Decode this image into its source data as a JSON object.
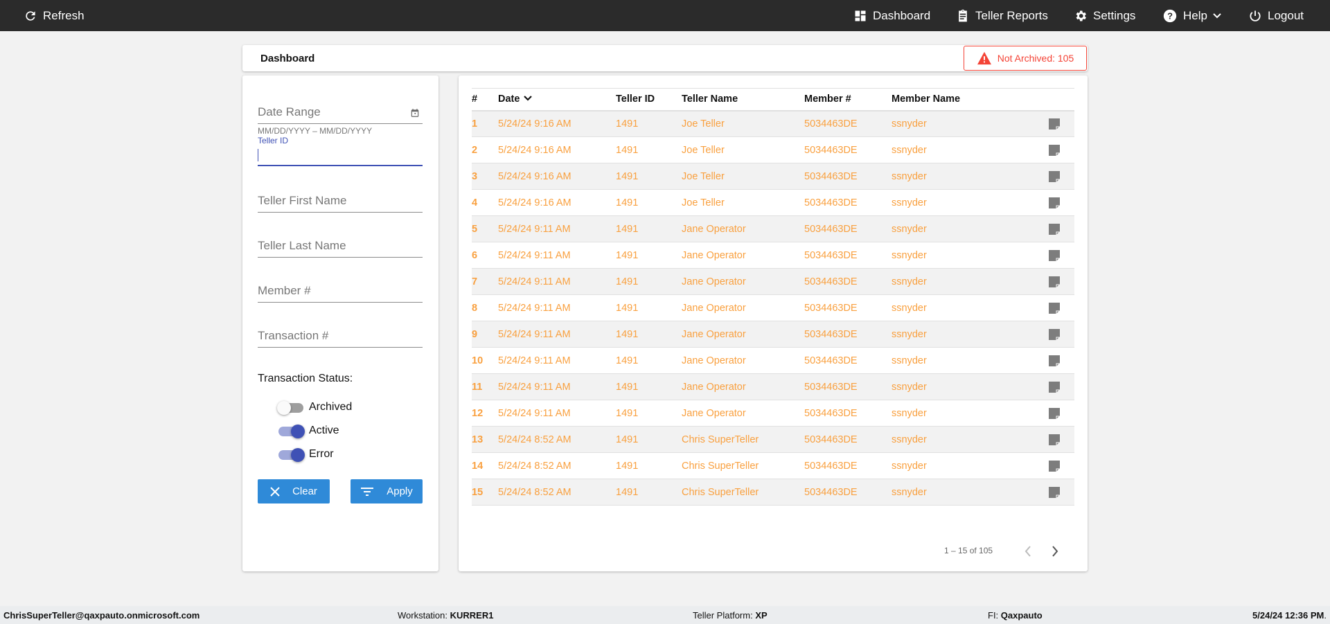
{
  "topbar": {
    "refresh": "Refresh",
    "dashboard": "Dashboard",
    "teller_reports": "Teller Reports",
    "settings": "Settings",
    "help": "Help",
    "logout": "Logout"
  },
  "header": {
    "title": "Dashboard",
    "not_archived": "Not Archived: 105"
  },
  "filters": {
    "date_range": "Date Range",
    "date_hint": "MM/DD/YYYY – MM/DD/YYYY",
    "teller_id_label": "Teller ID",
    "teller_id_value": "",
    "teller_first": "Teller First Name",
    "teller_last": "Teller Last Name",
    "member": "Member #",
    "transaction": "Transaction #",
    "status_label": "Transaction Status:",
    "toggles": [
      {
        "label": "Archived",
        "on": false
      },
      {
        "label": "Active",
        "on": true
      },
      {
        "label": "Error",
        "on": true
      }
    ],
    "clear": "Clear",
    "apply": "Apply"
  },
  "table": {
    "columns": [
      "#",
      "Date",
      "Teller ID",
      "Teller Name",
      "Member #",
      "Member Name"
    ],
    "rows": [
      [
        "1",
        "5/24/24 9:16 AM",
        "1491",
        "Joe Teller",
        "5034463DE",
        "ssnyder"
      ],
      [
        "2",
        "5/24/24 9:16 AM",
        "1491",
        "Joe Teller",
        "5034463DE",
        "ssnyder"
      ],
      [
        "3",
        "5/24/24 9:16 AM",
        "1491",
        "Joe Teller",
        "5034463DE",
        "ssnyder"
      ],
      [
        "4",
        "5/24/24 9:16 AM",
        "1491",
        "Joe Teller",
        "5034463DE",
        "ssnyder"
      ],
      [
        "5",
        "5/24/24 9:11 AM",
        "1491",
        "Jane Operator",
        "5034463DE",
        "ssnyder"
      ],
      [
        "6",
        "5/24/24 9:11 AM",
        "1491",
        "Jane Operator",
        "5034463DE",
        "ssnyder"
      ],
      [
        "7",
        "5/24/24 9:11 AM",
        "1491",
        "Jane Operator",
        "5034463DE",
        "ssnyder"
      ],
      [
        "8",
        "5/24/24 9:11 AM",
        "1491",
        "Jane Operator",
        "5034463DE",
        "ssnyder"
      ],
      [
        "9",
        "5/24/24 9:11 AM",
        "1491",
        "Jane Operator",
        "5034463DE",
        "ssnyder"
      ],
      [
        "10",
        "5/24/24 9:11 AM",
        "1491",
        "Jane Operator",
        "5034463DE",
        "ssnyder"
      ],
      [
        "11",
        "5/24/24 9:11 AM",
        "1491",
        "Jane Operator",
        "5034463DE",
        "ssnyder"
      ],
      [
        "12",
        "5/24/24 9:11 AM",
        "1491",
        "Jane Operator",
        "5034463DE",
        "ssnyder"
      ],
      [
        "13",
        "5/24/24 8:52 AM",
        "1491",
        "Chris SuperTeller",
        "5034463DE",
        "ssnyder"
      ],
      [
        "14",
        "5/24/24 8:52 AM",
        "1491",
        "Chris SuperTeller",
        "5034463DE",
        "ssnyder"
      ],
      [
        "15",
        "5/24/24 8:52 AM",
        "1491",
        "Chris SuperTeller",
        "5034463DE",
        "ssnyder"
      ]
    ],
    "pagination": "1 – 15 of 105"
  },
  "footer": {
    "user": "ChrisSuperTeller@qaxpauto.onmicrosoft.com",
    "workstation_label": "Workstation: ",
    "workstation": "KURRER1",
    "platform_label": "Teller Platform: ",
    "platform": "XP",
    "fi_label": "FI: ",
    "fi": "Qaxpauto",
    "datetime": "5/24/24 12:36 PM",
    "period": "."
  },
  "colors": {
    "accent": "#2f8ad8",
    "row_text": "#f9a03f",
    "toggle": "#3f51b5",
    "alert": "#f44336"
  }
}
